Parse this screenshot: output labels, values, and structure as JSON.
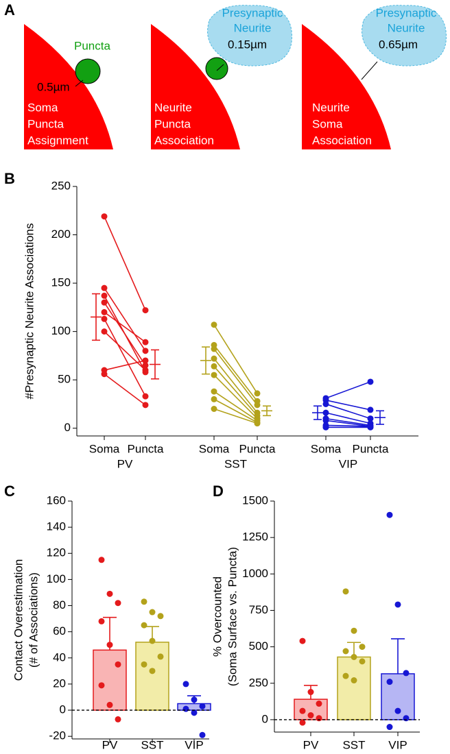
{
  "panel_labels": [
    "A",
    "B",
    "C",
    "D"
  ],
  "diagram": {
    "panels": [
      {
        "lines": [
          "Soma",
          "Puncta",
          "Assignment"
        ],
        "puncta_label": "Puncta",
        "distance": "0.5µm"
      },
      {
        "lines": [
          "Neurite",
          "Puncta",
          "Association"
        ],
        "neurite_label": [
          "Presynaptic",
          "Neurite"
        ],
        "distance": "0.15µm"
      },
      {
        "lines": [
          "Neurite",
          "Soma",
          "Association"
        ],
        "neurite_label": [
          "Presynaptic",
          "Neurite"
        ],
        "distance": "0.65µm"
      }
    ]
  },
  "chart_data": [
    {
      "type": "paired",
      "ylabel": "#Presynaptic Neurite Associations",
      "categories": [
        "Soma",
        "Puncta"
      ],
      "ylim": [
        -8,
        250
      ],
      "yticks": [
        0,
        50,
        100,
        150,
        200,
        250
      ],
      "series": [
        {
          "name": "PV",
          "color": "#e41a1c",
          "values": [
            [
              219,
              145,
              137,
              130,
              120,
              113,
              100,
              60,
              56
            ],
            [
              122,
              80,
              58,
              65,
              89,
              33,
              60,
              70,
              24
            ]
          ],
          "mean": [
            115,
            66
          ],
          "sem": [
            24,
            15
          ]
        },
        {
          "name": "SST",
          "color": "#b3a21b",
          "values": [
            [
              107,
              86,
              82,
              72,
              64,
              55,
              38,
              30,
              20
            ],
            [
              36,
              28,
              24,
              16,
              13,
              10,
              8,
              6,
              5
            ]
          ],
          "mean": [
            70,
            18
          ],
          "sem": [
            14,
            5
          ]
        },
        {
          "name": "VIP",
          "color": "#1717d4",
          "values": [
            [
              31,
              29,
              25,
              16,
              10,
              8,
              3,
              1,
              1
            ],
            [
              48,
              19,
              10,
              5,
              3,
              2,
              2,
              1,
              1
            ]
          ],
          "mean": [
            16,
            11
          ],
          "sem": [
            7,
            7
          ]
        }
      ]
    },
    {
      "type": "bar_dot",
      "ylabel": [
        "Contact Overestimation",
        "(# of Associations)"
      ],
      "categories": [
        "PV",
        "SST",
        "VIP"
      ],
      "values": [
        46,
        52,
        5
      ],
      "errors": [
        25,
        12,
        6
      ],
      "points": [
        [
          115,
          89,
          82,
          68,
          50,
          35,
          19,
          4,
          -7
        ],
        [
          83,
          75,
          72,
          65,
          53,
          41,
          35,
          30
        ],
        [
          20,
          8,
          3,
          1,
          -2,
          -19
        ]
      ],
      "colors": [
        "#e41a1c",
        "#b3a21b",
        "#1717d4"
      ],
      "fills": [
        "#f9b4b4",
        "#f2eca8",
        "#b6b6f4"
      ],
      "ylim": [
        -22,
        160
      ],
      "yticks": [
        -20,
        0,
        20,
        40,
        60,
        80,
        100,
        120,
        140,
        160
      ],
      "zero_line": true
    },
    {
      "type": "bar_dot",
      "ylabel": [
        "% Overcounted",
        "(Soma Surface vs. Puncta)"
      ],
      "categories": [
        "PV",
        "SST",
        "VIP"
      ],
      "values": [
        140,
        430,
        315
      ],
      "errors": [
        95,
        100,
        240
      ],
      "points": [
        [
          540,
          190,
          110,
          60,
          30,
          10,
          -20
        ],
        [
          880,
          610,
          500,
          470,
          430,
          400,
          300,
          270
        ],
        [
          1405,
          790,
          320,
          260,
          60,
          10,
          -50
        ]
      ],
      "colors": [
        "#e41a1c",
        "#b3a21b",
        "#1717d4"
      ],
      "fills": [
        "#f9b4b4",
        "#f2eca8",
        "#b6b6f4"
      ],
      "ylim": [
        -85,
        1500
      ],
      "yticks": [
        0,
        250,
        500,
        750,
        1000,
        1250,
        1500
      ],
      "zero_line": true
    }
  ]
}
